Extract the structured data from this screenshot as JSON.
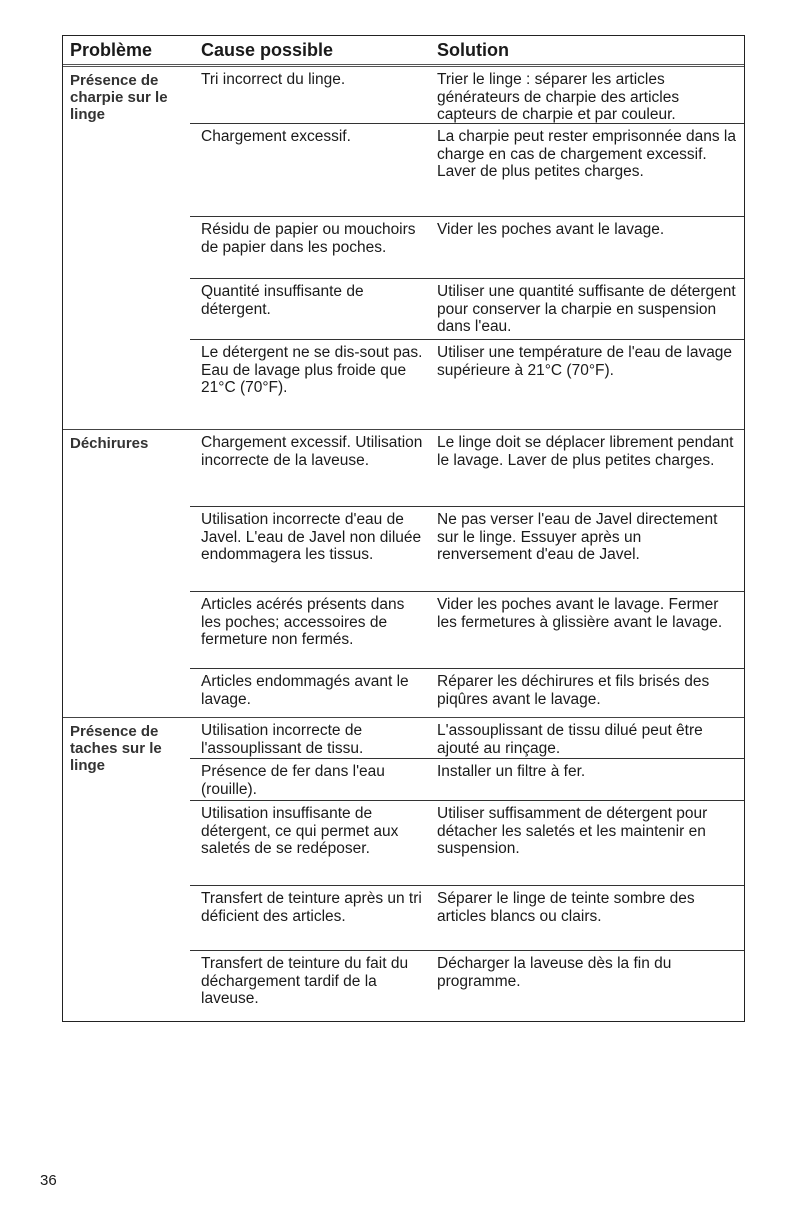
{
  "header": {
    "problem": "Problème",
    "cause": "Cause possible",
    "solution": "Solution"
  },
  "groups": [
    {
      "problem": "Présence de charpie sur le linge",
      "rows": [
        {
          "cause": "Tri incorrect du linge.",
          "solution": "Trier le linge : séparer les articles générateurs de charpie des articles capteurs de charpie et par couleur."
        },
        {
          "cause": "Chargement excessif.",
          "solution": "La charpie peut rester emprisonnée dans la charge en cas de chargement excessif. Laver de plus petites charges."
        },
        {
          "cause": "Résidu de papier ou mouchoirs de papier dans les poches.",
          "solution": "Vider les poches avant le lavage."
        },
        {
          "cause": "Quantité insuffisante de détergent.",
          "solution": "Utiliser une quantité suffisante de détergent pour conserver la charpie en suspension dans l'eau."
        },
        {
          "cause": "Le détergent ne se dis-sout pas. Eau de lavage plus froide que 21°C (70°F).",
          "solution": "Utiliser une température de l'eau de lavage supérieure à 21°C (70°F)."
        }
      ]
    },
    {
      "problem": "Déchirures",
      "rows": [
        {
          "cause": "Chargement excessif. Utilisation incorrecte de la laveuse.",
          "solution": "Le linge doit se déplacer librement pendant le lavage. Laver de plus petites charges."
        },
        {
          "cause": "Utilisation incorrecte d'eau de Javel. L'eau de Javel non diluée endommagera les tissus.",
          "solution": "Ne pas verser l'eau de Javel directement sur le linge. Essuyer après un renversement d'eau de Javel."
        },
        {
          "cause": "Articles acérés présents dans les poches; accessoires de fermeture non fermés.",
          "solution": "Vider les poches avant le lavage. Fermer les fermetures à glissière avant le lavage."
        },
        {
          "cause": "Articles endommagés avant le lavage.",
          "solution": "Réparer les déchirures et fils brisés des piqûres avant le lavage."
        }
      ]
    },
    {
      "problem": "Présence de taches sur le linge",
      "rows": [
        {
          "cause": "Utilisation incorrecte de l'assouplissant de tissu.",
          "solution": "L'assouplissant de tissu dilué peut être ajouté au rinçage."
        },
        {
          "cause": "Présence de fer dans l'eau (rouille).",
          "solution": "Installer un filtre à fer."
        },
        {
          "cause": "Utilisation insuffisante de détergent, ce qui permet aux saletés de se redéposer.",
          "solution": "Utiliser suffisamment de détergent pour détacher les saletés et les maintenir en suspension."
        },
        {
          "cause": "Transfert de teinture après un tri déficient des articles.",
          "solution": "Séparer le linge de teinte sombre des articles blancs ou clairs."
        },
        {
          "cause": "Transfert de teinture du fait du déchargement tardif de la laveuse.",
          "solution": "Décharger la laveuse dès la fin du programme."
        }
      ]
    }
  ],
  "page_number": "36"
}
